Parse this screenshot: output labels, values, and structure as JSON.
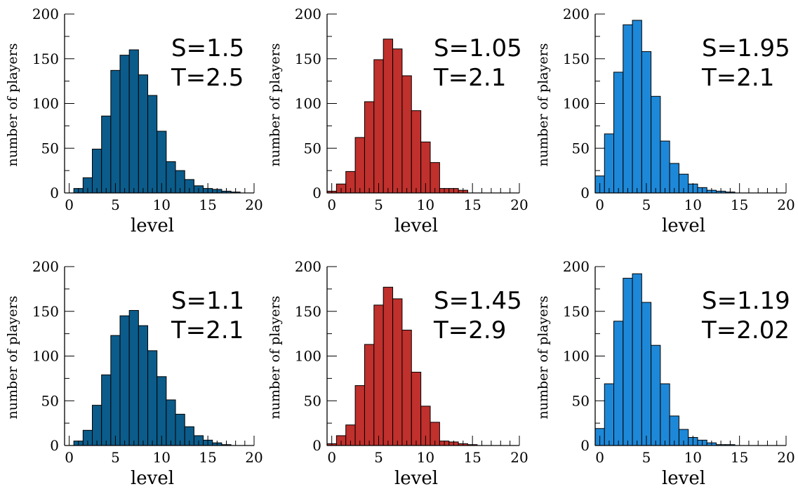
{
  "chart_data": [
    {
      "type": "bar",
      "color": "#0b5c8a",
      "xlabel": "level",
      "ylabel": "number of players",
      "xlim": [
        -0.5,
        20
      ],
      "ylim": [
        0,
        200
      ],
      "xticks": [
        "0",
        "5",
        "10",
        "15",
        "20"
      ],
      "yticks": [
        "0",
        "50",
        "100",
        "150",
        "200"
      ],
      "annotation": [
        "S=1.5",
        "T=2.5"
      ],
      "x": [
        0,
        1,
        2,
        3,
        4,
        5,
        6,
        7,
        8,
        9,
        10,
        11,
        12,
        13,
        14,
        15,
        16,
        17,
        18,
        19
      ],
      "values": [
        0,
        5,
        17,
        49,
        86,
        137,
        154,
        160,
        132,
        109,
        69,
        35,
        25,
        15,
        8,
        5,
        4,
        2,
        1,
        0
      ]
    },
    {
      "type": "bar",
      "color": "#c0302c",
      "xlabel": "level",
      "ylabel": "number of players",
      "xlim": [
        -0.5,
        20
      ],
      "ylim": [
        0,
        200
      ],
      "xticks": [
        "0",
        "5",
        "10",
        "15",
        "20"
      ],
      "yticks": [
        "0",
        "50",
        "100",
        "150",
        "200"
      ],
      "annotation": [
        "S=1.05",
        "T=2.1"
      ],
      "x": [
        0,
        1,
        2,
        3,
        4,
        5,
        6,
        7,
        8,
        9,
        10,
        11,
        12,
        13,
        14,
        15,
        16,
        17,
        18,
        19
      ],
      "values": [
        2,
        10,
        24,
        62,
        102,
        149,
        172,
        161,
        131,
        92,
        57,
        34,
        5,
        5,
        3,
        0,
        0,
        0,
        0,
        0
      ]
    },
    {
      "type": "bar",
      "color": "#1e88d8",
      "xlabel": "level",
      "ylabel": "number of players",
      "xlim": [
        -0.5,
        20
      ],
      "ylim": [
        0,
        200
      ],
      "xticks": [
        "0",
        "5",
        "10",
        "15",
        "20"
      ],
      "yticks": [
        "0",
        "50",
        "100",
        "150",
        "200"
      ],
      "annotation": [
        "S=1.95",
        "T=2.1"
      ],
      "x": [
        0,
        1,
        2,
        3,
        4,
        5,
        6,
        7,
        8,
        9,
        10,
        11,
        12,
        13,
        14,
        15,
        16,
        17,
        18,
        19
      ],
      "values": [
        19,
        66,
        135,
        188,
        193,
        158,
        108,
        58,
        33,
        21,
        10,
        6,
        3,
        2,
        1,
        0,
        0,
        0,
        0,
        0
      ]
    },
    {
      "type": "bar",
      "color": "#0b5c8a",
      "xlabel": "level",
      "ylabel": "number of players",
      "xlim": [
        -0.5,
        20
      ],
      "ylim": [
        0,
        200
      ],
      "xticks": [
        "0",
        "5",
        "10",
        "15",
        "20"
      ],
      "yticks": [
        "0",
        "50",
        "100",
        "150",
        "200"
      ],
      "annotation": [
        "S=1.1",
        "T=2.1"
      ],
      "x": [
        0,
        1,
        2,
        3,
        4,
        5,
        6,
        7,
        8,
        9,
        10,
        11,
        12,
        13,
        14,
        15,
        16,
        17,
        18,
        19
      ],
      "values": [
        0,
        5,
        17,
        45,
        79,
        123,
        145,
        151,
        134,
        106,
        77,
        51,
        35,
        21,
        11,
        6,
        3,
        1,
        0,
        0
      ]
    },
    {
      "type": "bar",
      "color": "#c0302c",
      "xlabel": "level",
      "ylabel": "number of players",
      "xlim": [
        -0.5,
        20
      ],
      "ylim": [
        0,
        200
      ],
      "xticks": [
        "0",
        "5",
        "10",
        "15",
        "20"
      ],
      "yticks": [
        "0",
        "50",
        "100",
        "150",
        "200"
      ],
      "annotation": [
        "S=1.45",
        "T=2.9"
      ],
      "x": [
        0,
        1,
        2,
        3,
        4,
        5,
        6,
        7,
        8,
        9,
        10,
        11,
        12,
        13,
        14,
        15,
        16,
        17,
        18,
        19
      ],
      "values": [
        2,
        11,
        23,
        67,
        113,
        157,
        177,
        164,
        129,
        82,
        44,
        26,
        5,
        4,
        2,
        1,
        0,
        0,
        0,
        0
      ]
    },
    {
      "type": "bar",
      "color": "#1e88d8",
      "xlabel": "level",
      "ylabel": "number of players",
      "xlim": [
        -0.5,
        20
      ],
      "ylim": [
        0,
        200
      ],
      "xticks": [
        "0",
        "5",
        "10",
        "15",
        "20"
      ],
      "yticks": [
        "0",
        "50",
        "100",
        "150",
        "200"
      ],
      "annotation": [
        "S=1.19",
        "T=2.02"
      ],
      "x": [
        0,
        1,
        2,
        3,
        4,
        5,
        6,
        7,
        8,
        9,
        10,
        11,
        12,
        13,
        14,
        15,
        16,
        17,
        18,
        19
      ],
      "values": [
        19,
        69,
        139,
        187,
        192,
        160,
        112,
        69,
        33,
        18,
        9,
        6,
        3,
        1,
        1,
        0,
        0,
        0,
        0,
        0
      ]
    }
  ]
}
